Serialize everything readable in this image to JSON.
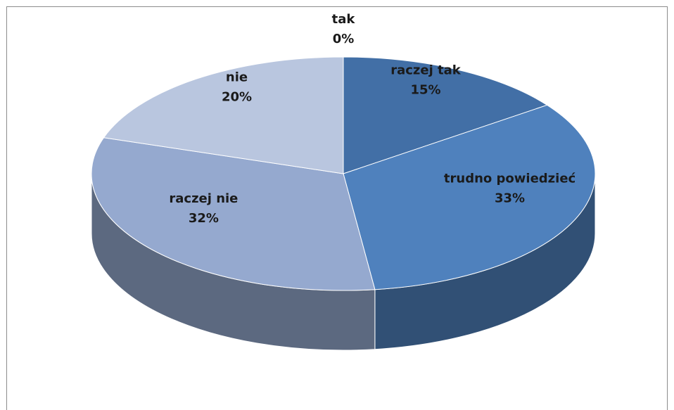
{
  "chart_data": {
    "type": "pie",
    "categories": [
      "tak",
      "raczej tak",
      "trudno powiedzieć",
      "raczej nie",
      "nie"
    ],
    "values": [
      0,
      15,
      33,
      32,
      20
    ],
    "value_labels": [
      "0%",
      "15%",
      "33%",
      "32%",
      "20%"
    ],
    "colors": [
      "#2c4d75",
      "#426fa6",
      "#4f81bd",
      "#95a9cf",
      "#b9c6df"
    ]
  }
}
